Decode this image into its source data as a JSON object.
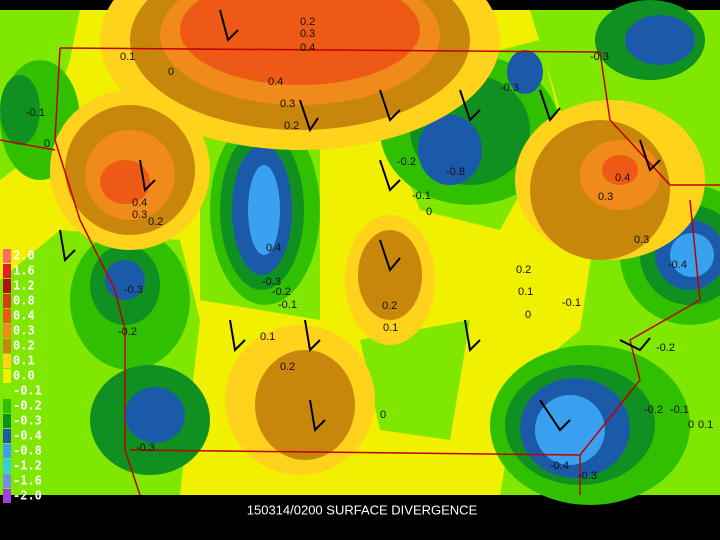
{
  "title": "150314/0200 SURFACE DIVERGENCE",
  "legend": {
    "labels": [
      "2.0",
      "1.6",
      "1.2",
      "0.8",
      "0.4",
      "0.3",
      "0.2",
      "0.1",
      "0.0",
      "-0.1",
      "-0.2",
      "-0.3",
      "-0.4",
      "-0.8",
      "-1.2",
      "-1.6",
      "-2.0"
    ],
    "colors": [
      "#ff6a6a",
      "#e02020",
      "#b01010",
      "#d04010",
      "#ee5a16",
      "#f08a1a",
      "#c8860a",
      "#ffd21c",
      "#f0f000",
      "#80e800",
      "#30c000",
      "#109020",
      "#1a5aa8",
      "#3aa0f0",
      "#30d0e0",
      "#7090e0",
      "#a040e0"
    ]
  },
  "contour_labels": [
    "0.2",
    "0.3",
    "0.4",
    "0.1",
    "0",
    "-0.3",
    "-0.3",
    "0.4",
    "0.3",
    "0.2",
    "-0.1",
    "0",
    "-0.2",
    "-0.8",
    "0.4",
    "-0.1",
    "0",
    "0.3",
    "0.4",
    "0.3",
    "0.2",
    "0.3",
    "-0.4",
    "0.4",
    "-0.3",
    "0.2",
    "0.1",
    "-0.1",
    "0",
    "-0.3",
    "-0.2",
    "-0.1",
    "0.2",
    "0.1",
    "0.1",
    "-0.2",
    "-0.2",
    "0.2",
    "-0.2",
    "-0.1",
    "0",
    "0",
    "0.1",
    "-0.3",
    "-0.4",
    "-0.3"
  ]
}
